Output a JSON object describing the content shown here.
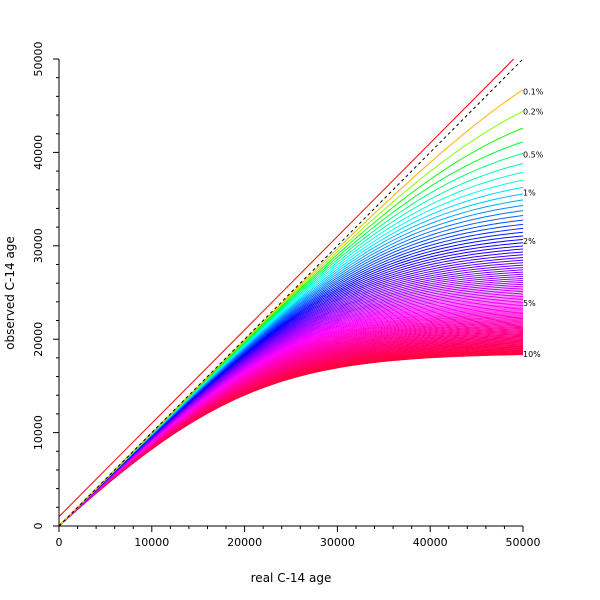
{
  "chart_data": {
    "type": "line",
    "xlabel": "real C-14 age",
    "ylabel": "observed C-14 age",
    "xlim": [
      0,
      50000
    ],
    "ylim": [
      0,
      50000
    ],
    "x_ticks": [
      0,
      10000,
      20000,
      30000,
      40000,
      50000
    ],
    "y_ticks": [
      0,
      10000,
      20000,
      30000,
      40000,
      50000
    ],
    "x_tick_labels": [
      "0",
      "10000",
      "20000",
      "30000",
      "40000",
      "50000"
    ],
    "y_tick_labels": [
      "0",
      "10000",
      "20000",
      "30000",
      "40000",
      "50000"
    ],
    "grid": false,
    "contamination_curves": {
      "description_of_family": "observed age vs real age for modern-carbon contamination fractions, one curve per fraction",
      "fraction_percent_min": 0.1,
      "fraction_percent_max": 10,
      "fraction_percent_step": 0.1,
      "end_values_at_x_50000": [
        {
          "label": "0.1%",
          "y": 46500
        },
        {
          "label": "0.2%",
          "y": 44400
        },
        {
          "label": "0.5%",
          "y": 39800
        },
        {
          "label": "1%",
          "y": 35700
        },
        {
          "label": "2%",
          "y": 30500
        },
        {
          "label": "5%",
          "y": 23900
        },
        {
          "label": "10%",
          "y": 18400
        }
      ]
    },
    "reference_lines": [
      {
        "kind": "identity",
        "style": "dashed",
        "color": "#000000",
        "points": [
          [
            0,
            0
          ],
          [
            50000,
            50000
          ]
        ]
      },
      {
        "kind": "offset",
        "style": "solid",
        "color": "#ff0000",
        "points": [
          [
            0,
            1000
          ],
          [
            49000,
            50000
          ]
        ]
      }
    ]
  }
}
